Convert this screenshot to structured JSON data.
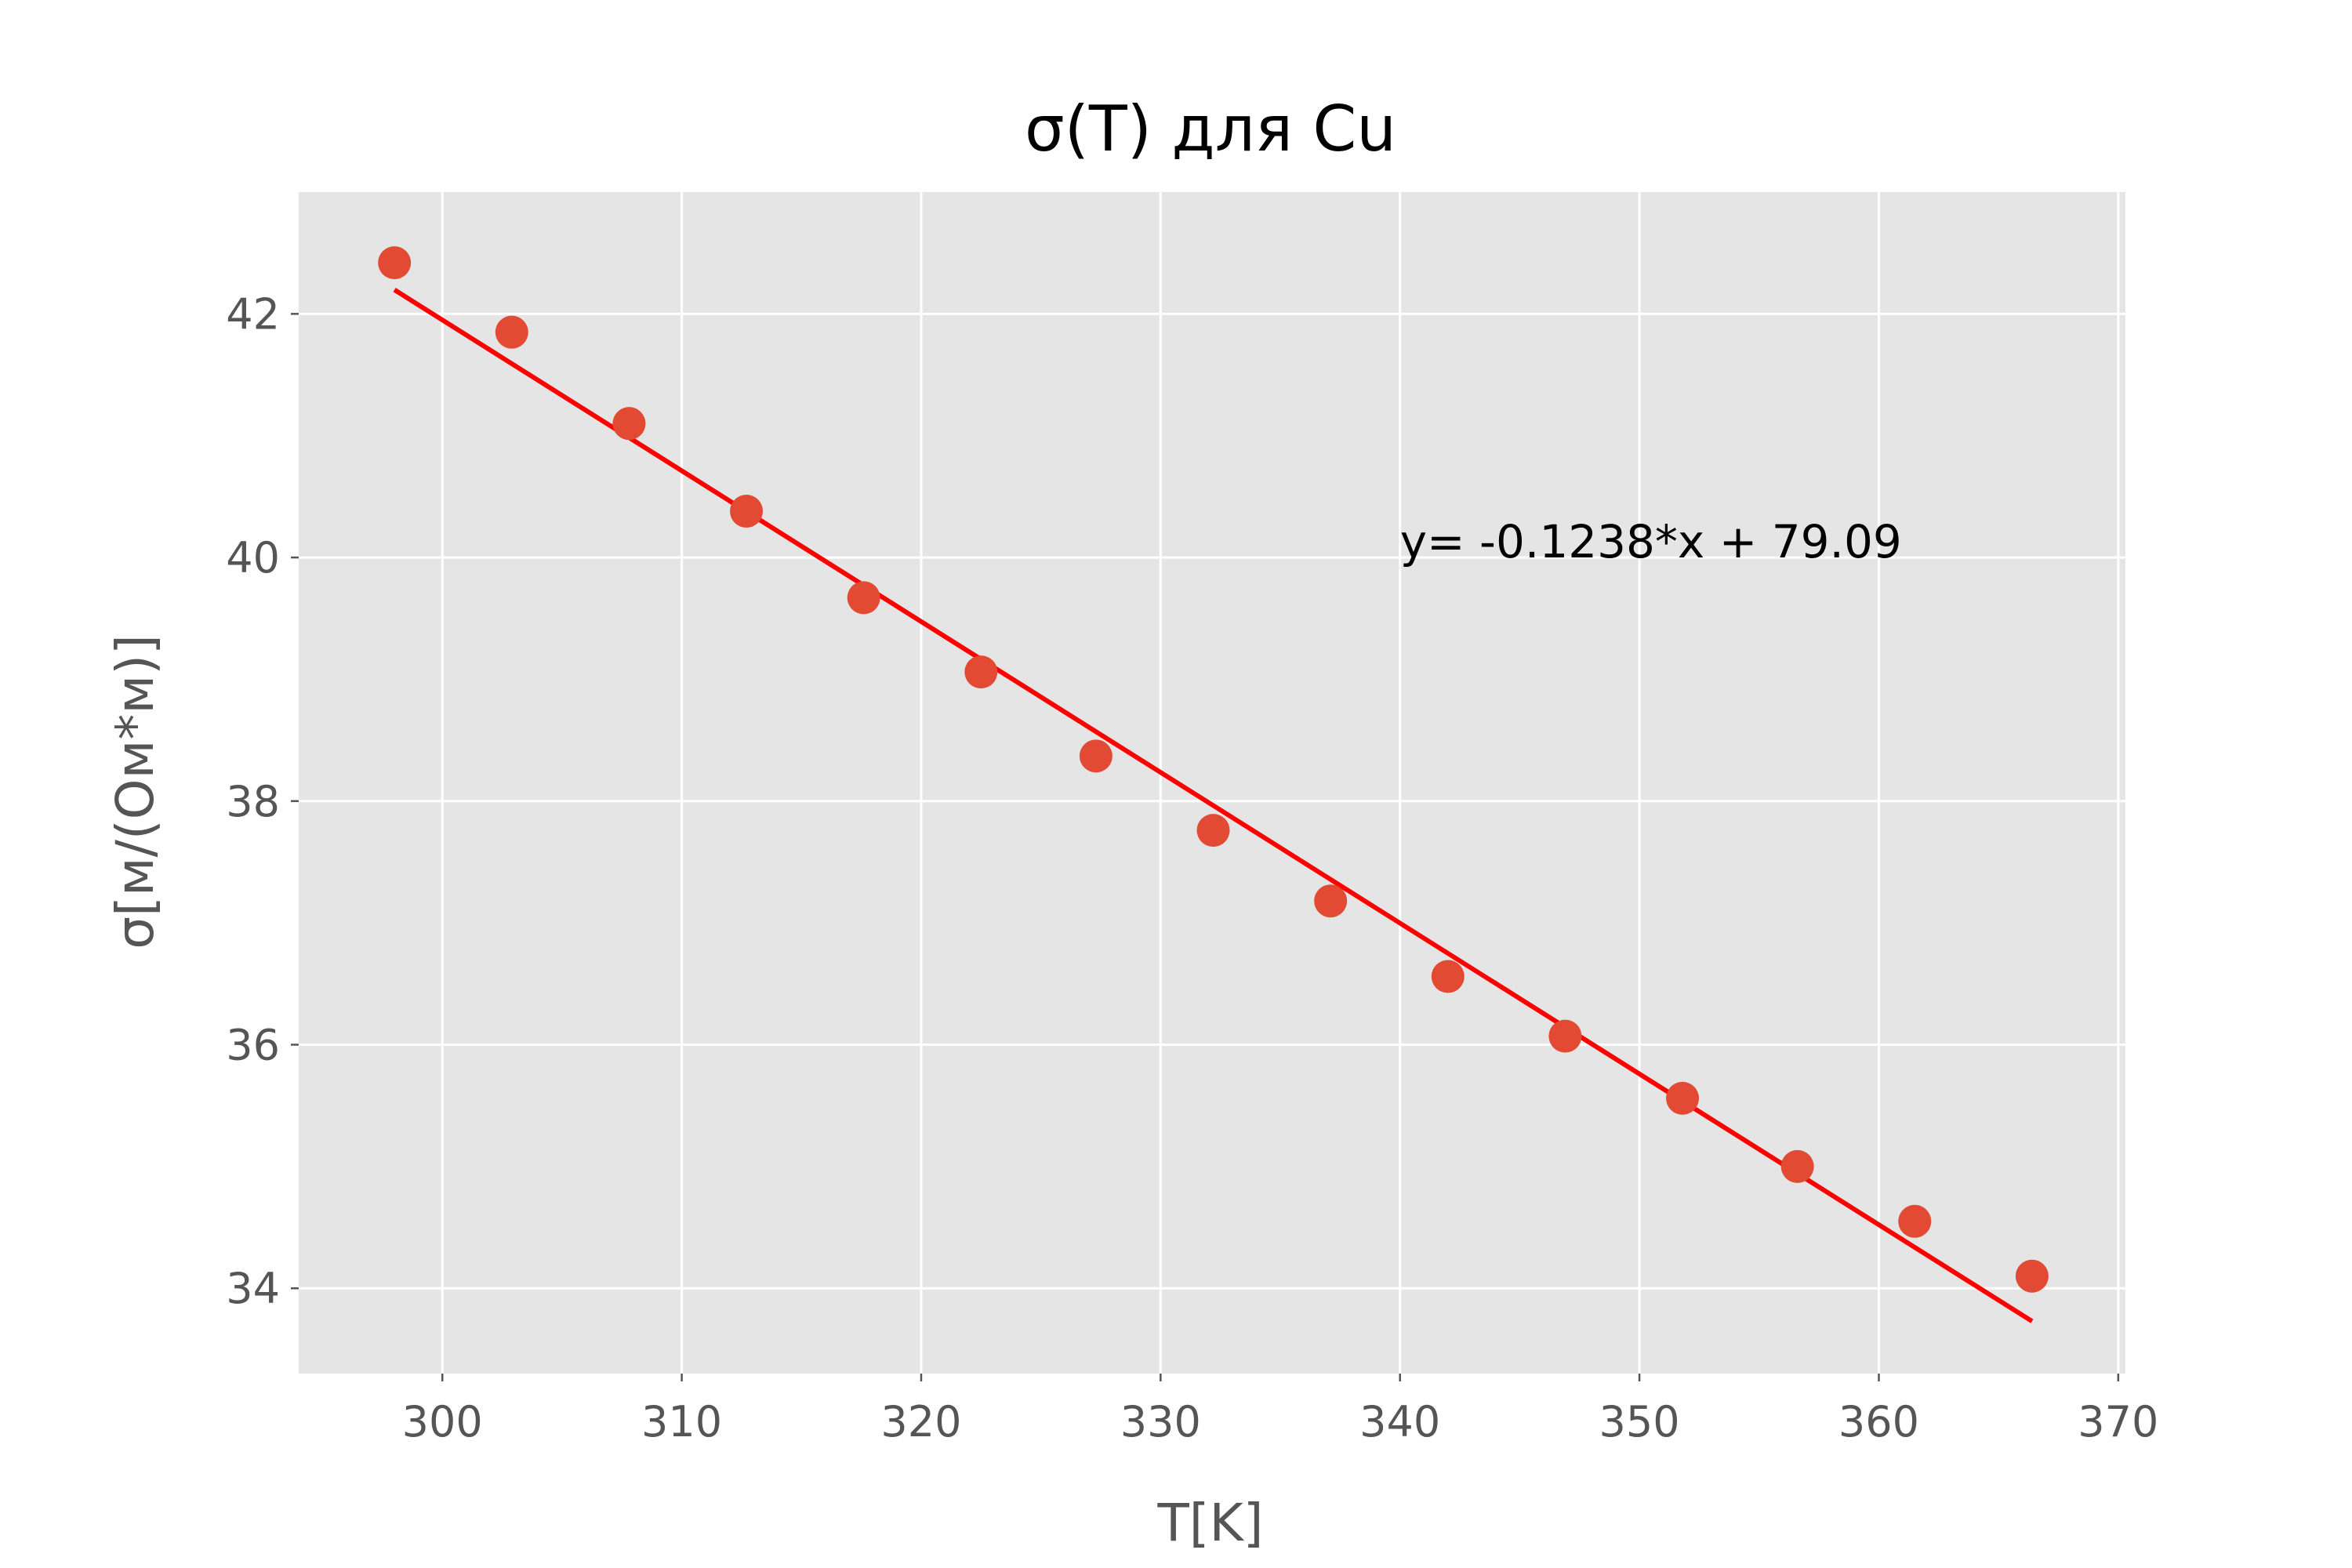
{
  "chart_data": {
    "type": "scatter",
    "title": "σ(T) для Cu",
    "xlabel": "T[K]",
    "ylabel": "σ[м/(Ом*м)]",
    "xlim": [
      294,
      370.3
    ],
    "ylim": [
      33.3,
      43.0
    ],
    "xticks": [
      300,
      310,
      320,
      330,
      340,
      350,
      360,
      370
    ],
    "yticks": [
      34,
      36,
      38,
      40,
      42
    ],
    "grid": true,
    "background": "#e5e5e5",
    "point_color": "#e24a33",
    "series": [
      {
        "x": [
          298.0,
          302.9,
          307.8,
          312.7,
          317.6,
          322.5,
          327.3,
          332.2,
          337.1,
          342.0,
          346.9,
          351.8,
          356.6,
          361.5,
          366.4
        ],
        "y": [
          42.42,
          41.85,
          41.1,
          40.38,
          39.67,
          39.06,
          38.37,
          37.76,
          37.18,
          36.56,
          36.07,
          35.56,
          35.0,
          34.55,
          34.1
        ]
      }
    ],
    "fit": {
      "color": "#ff0000",
      "slope": -0.1238,
      "intercept": 79.09,
      "x_range": [
        298.0,
        366.4
      ]
    },
    "annotation": {
      "text": "y= -0.1238*x + 79.09",
      "x": 340,
      "y": 40.0
    }
  }
}
